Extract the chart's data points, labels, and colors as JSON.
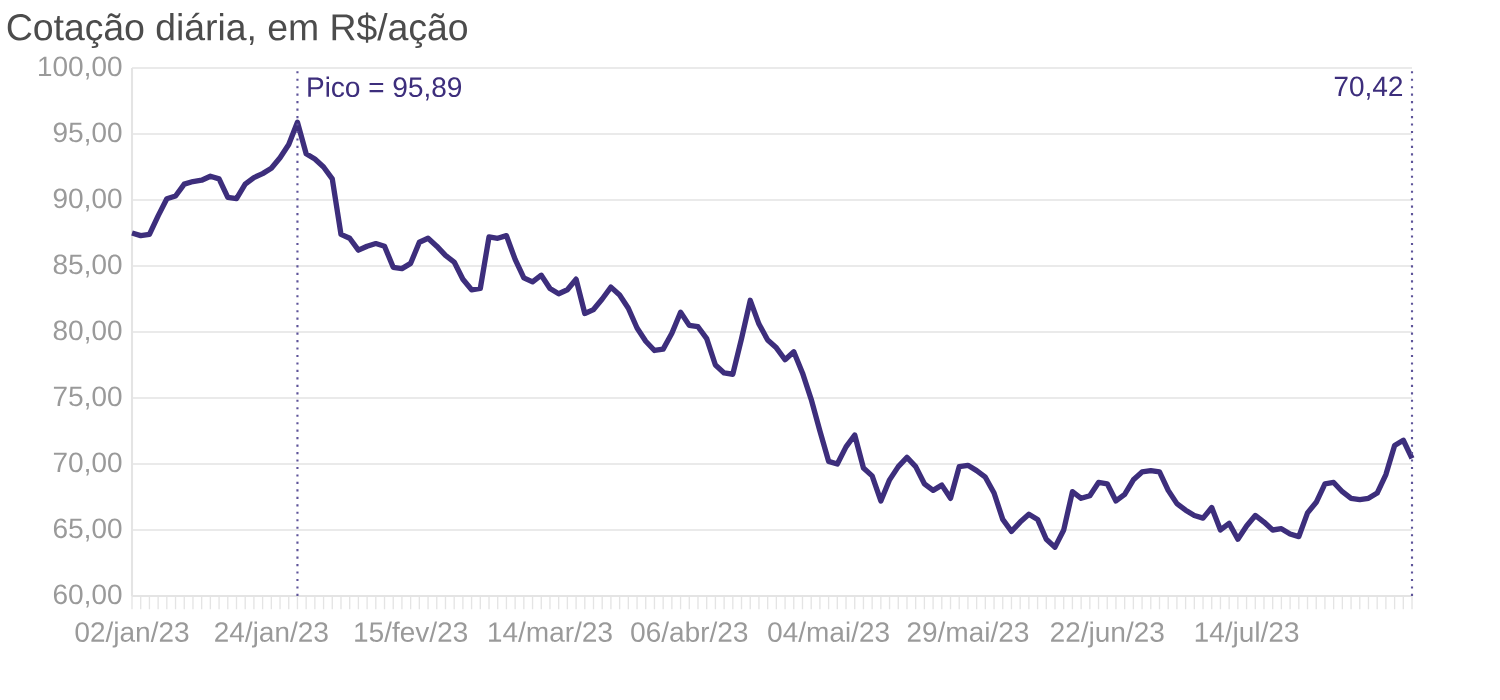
{
  "chart_data": {
    "type": "line",
    "title": "Cotação diária, em R$/ação",
    "categories": [
      "02/jan/23",
      null,
      null,
      null,
      null,
      null,
      null,
      null,
      null,
      null,
      null,
      null,
      null,
      null,
      null,
      null,
      "24/jan/23",
      null,
      null,
      null,
      null,
      null,
      null,
      null,
      null,
      null,
      null,
      null,
      null,
      null,
      null,
      null,
      "15/fev/23",
      null,
      null,
      null,
      null,
      null,
      null,
      null,
      null,
      null,
      null,
      null,
      null,
      null,
      null,
      null,
      "14/mar/23",
      null,
      null,
      null,
      null,
      null,
      null,
      null,
      null,
      null,
      null,
      null,
      null,
      null,
      null,
      null,
      "06/abr/23",
      null,
      null,
      null,
      null,
      null,
      null,
      null,
      null,
      null,
      null,
      null,
      null,
      null,
      null,
      null,
      "04/mai/23",
      null,
      null,
      null,
      null,
      null,
      null,
      null,
      null,
      null,
      null,
      null,
      null,
      null,
      null,
      null,
      "29/mai/23",
      null,
      null,
      null,
      null,
      null,
      null,
      null,
      null,
      null,
      null,
      null,
      null,
      null,
      null,
      null,
      "22/jun/23",
      null,
      null,
      null,
      null,
      null,
      null,
      null,
      null,
      null,
      null,
      null,
      null,
      null,
      null,
      null,
      "14/jul/23",
      null,
      null,
      null,
      null,
      null,
      null,
      null,
      null,
      null,
      null,
      null,
      null,
      null,
      null,
      null,
      null,
      null,
      null,
      null
    ],
    "series": [
      {
        "color": "#3d2e7c",
        "values": [
          87.5,
          87.3,
          87.4,
          88.8,
          90.1,
          90.3,
          91.2,
          91.4,
          91.5,
          91.8,
          91.6,
          90.2,
          90.1,
          91.2,
          91.7,
          92.0,
          92.4,
          93.2,
          94.2,
          95.89,
          93.5,
          93.1,
          92.5,
          91.6,
          87.4,
          87.1,
          86.2,
          86.5,
          86.7,
          86.5,
          84.9,
          84.8,
          85.2,
          86.8,
          87.1,
          86.5,
          85.8,
          85.3,
          84.0,
          83.2,
          83.3,
          87.2,
          87.1,
          87.3,
          85.5,
          84.1,
          83.8,
          84.3,
          83.3,
          82.9,
          83.2,
          84.0,
          81.4,
          81.7,
          82.5,
          83.4,
          82.8,
          81.8,
          80.3,
          79.3,
          78.6,
          78.7,
          79.9,
          81.5,
          80.5,
          80.4,
          79.5,
          77.5,
          76.9,
          76.8,
          79.5,
          82.4,
          80.6,
          79.4,
          78.8,
          77.9,
          78.5,
          76.9,
          74.9,
          72.5,
          70.2,
          70.0,
          71.3,
          72.2,
          69.7,
          69.1,
          67.2,
          68.8,
          69.8,
          70.5,
          69.8,
          68.5,
          68.0,
          68.4,
          67.4,
          69.8,
          69.9,
          69.5,
          69.0,
          67.8,
          65.8,
          64.9,
          65.6,
          66.2,
          65.8,
          64.3,
          63.7,
          65.0,
          67.9,
          67.4,
          67.6,
          68.6,
          68.5,
          67.2,
          67.7,
          68.8,
          69.4,
          69.5,
          69.4,
          68.0,
          67.0,
          66.5,
          66.1,
          65.9,
          66.7,
          65.0,
          65.5,
          64.3,
          65.3,
          66.1,
          65.6,
          65.0,
          65.1,
          64.7,
          64.5,
          66.3,
          67.1,
          68.5,
          68.6,
          67.9,
          67.4,
          67.3,
          67.4,
          67.8,
          69.2,
          71.4,
          71.8,
          70.42
        ]
      }
    ],
    "ylim": [
      60,
      100
    ],
    "yticks": [
      {
        "value": 60,
        "label": "60,00"
      },
      {
        "value": 65,
        "label": "65,00"
      },
      {
        "value": 70,
        "label": "70,00"
      },
      {
        "value": 75,
        "label": "75,00"
      },
      {
        "value": 80,
        "label": "80,00"
      },
      {
        "value": 85,
        "label": "85,00"
      },
      {
        "value": 90,
        "label": "90,00"
      },
      {
        "value": 95,
        "label": "95,00"
      },
      {
        "value": 100,
        "label": "100,00"
      }
    ],
    "grid": "y",
    "marker": "none",
    "line_style": "solid",
    "annotations": [
      "Pico = 95,89",
      "70,42"
    ]
  }
}
